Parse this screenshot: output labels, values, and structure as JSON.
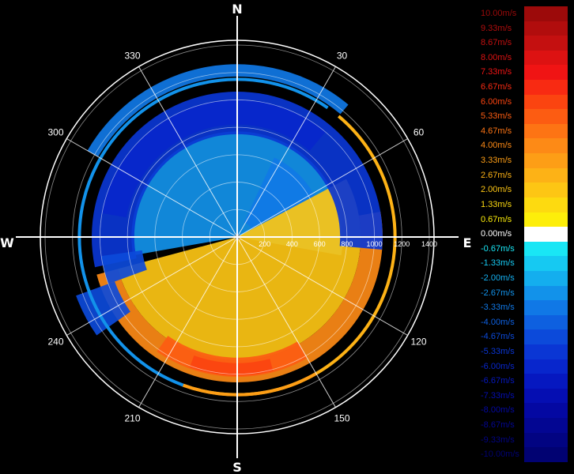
{
  "chart_data": {
    "type": "heatmap",
    "subtype": "polar radial-velocity radar display",
    "cardinals": {
      "north": "N",
      "east": "E",
      "south": "S",
      "west": "W"
    },
    "azimuth_labels": [
      {
        "az": 30,
        "text": "30"
      },
      {
        "az": 60,
        "text": "60"
      },
      {
        "az": 120,
        "text": "120"
      },
      {
        "az": 150,
        "text": "150"
      },
      {
        "az": 210,
        "text": "210"
      },
      {
        "az": 240,
        "text": "240"
      },
      {
        "az": 300,
        "text": "300"
      },
      {
        "az": 330,
        "text": "330"
      }
    ],
    "range_rings": [
      200,
      400,
      600,
      800,
      1000,
      1200,
      1400
    ],
    "range_labels": [
      "200",
      "400",
      "600",
      "800",
      "1000",
      "1200",
      "1400"
    ],
    "sectors": [
      {
        "az_start": 260,
        "az_end": 460,
        "r_start": 20,
        "r_end": 770,
        "velocity": -2.67
      },
      {
        "az_start": 25,
        "az_end": 62,
        "r_start": 120,
        "r_end": 640,
        "velocity": -3.33
      },
      {
        "az_start": 62,
        "az_end": 255,
        "r_start": 20,
        "r_end": 900,
        "velocity": 2.0
      },
      {
        "az_start": 80,
        "az_end": 255,
        "r_start": 900,
        "r_end": 1060,
        "velocity": 4.0
      },
      {
        "az_start": 150,
        "az_end": 215,
        "r_start": 880,
        "r_end": 1020,
        "velocity": 5.33
      },
      {
        "az_start": 165,
        "az_end": 200,
        "r_start": 920,
        "r_end": 1010,
        "velocity": 6.0
      },
      {
        "az_start": 258,
        "az_end": 455,
        "r_start": 750,
        "r_end": 1060,
        "velocity": -5.33
      },
      {
        "az_start": 280,
        "az_end": 400,
        "r_start": 820,
        "r_end": 1000,
        "velocity": -6.0
      },
      {
        "az_start": 250,
        "az_end": 262,
        "r_start": 700,
        "r_end": 1000,
        "velocity": -4.67
      },
      {
        "az_start": 300,
        "az_end": 400,
        "r_start": 1170,
        "r_end": 1260,
        "velocity": -3.33
      },
      {
        "az_start": 235,
        "az_end": 250,
        "r_start": 950,
        "r_end": 1250,
        "velocity": -4.67
      }
    ],
    "arc_bands": [
      {
        "az_start": 40,
        "az_end": 200,
        "r": 1150,
        "velocity": 2.67
      },
      {
        "az_start": 200,
        "az_end": 395,
        "r": 1150,
        "velocity": -2.67
      },
      {
        "az_start": 150,
        "az_end": 200,
        "r": 1150,
        "velocity": 3.33
      }
    ],
    "colorbar": {
      "entries": [
        {
          "label": "10.00m/s",
          "value": 10.0,
          "color": "#9c0a0a"
        },
        {
          "label": "9.33m/s",
          "value": 9.33,
          "color": "#b10d0d"
        },
        {
          "label": "8.67m/s",
          "value": 8.67,
          "color": "#c41010"
        },
        {
          "label": "8.00m/s",
          "value": 8.0,
          "color": "#dd1212"
        },
        {
          "label": "7.33m/s",
          "value": 7.33,
          "color": "#f01414"
        },
        {
          "label": "6.67m/s",
          "value": 6.67,
          "color": "#f82a12"
        },
        {
          "label": "6.00m/s",
          "value": 6.0,
          "color": "#fb4410"
        },
        {
          "label": "5.33m/s",
          "value": 5.33,
          "color": "#fc5c12"
        },
        {
          "label": "4.67m/s",
          "value": 4.67,
          "color": "#fd7414"
        },
        {
          "label": "4.00m/s",
          "value": 4.0,
          "color": "#fd8a16"
        },
        {
          "label": "3.33m/s",
          "value": 3.33,
          "color": "#fd9e16"
        },
        {
          "label": "2.67m/s",
          "value": 2.67,
          "color": "#fdb216"
        },
        {
          "label": "2.00m/s",
          "value": 2.0,
          "color": "#fdc614"
        },
        {
          "label": "1.33m/s",
          "value": 1.33,
          "color": "#fdda10"
        },
        {
          "label": "0.67m/s",
          "value": 0.67,
          "color": "#fdee0a"
        },
        {
          "label": "0.00m/s",
          "value": 0.0,
          "color": "#ffffff"
        },
        {
          "label": "-0.67m/s",
          "value": -0.67,
          "color": "#19e6f5"
        },
        {
          "label": "-1.33m/s",
          "value": -1.33,
          "color": "#16c9f2"
        },
        {
          "label": "-2.00m/s",
          "value": -2.0,
          "color": "#14aeee"
        },
        {
          "label": "-2.67m/s",
          "value": -2.67,
          "color": "#1292ea"
        },
        {
          "label": "-3.33m/s",
          "value": -3.33,
          "color": "#1078e6"
        },
        {
          "label": "-4.00m/s",
          "value": -4.0,
          "color": "#0e60e0"
        },
        {
          "label": "-4.67m/s",
          "value": -4.67,
          "color": "#0c4ada"
        },
        {
          "label": "-5.33m/s",
          "value": -5.33,
          "color": "#0a36d4"
        },
        {
          "label": "-6.00m/s",
          "value": -6.0,
          "color": "#0826cc"
        },
        {
          "label": "-6.67m/s",
          "value": -6.67,
          "color": "#0618c0"
        },
        {
          "label": "-7.33m/s",
          "value": -7.33,
          "color": "#050eb2"
        },
        {
          "label": "-8.00m/s",
          "value": -8.0,
          "color": "#0408a2"
        },
        {
          "label": "-8.67m/s",
          "value": -8.67,
          "color": "#030692"
        },
        {
          "label": "-9.33m/s",
          "value": -9.33,
          "color": "#020482"
        },
        {
          "label": "-10.00m/s",
          "value": -10.0,
          "color": "#010272"
        }
      ]
    }
  }
}
